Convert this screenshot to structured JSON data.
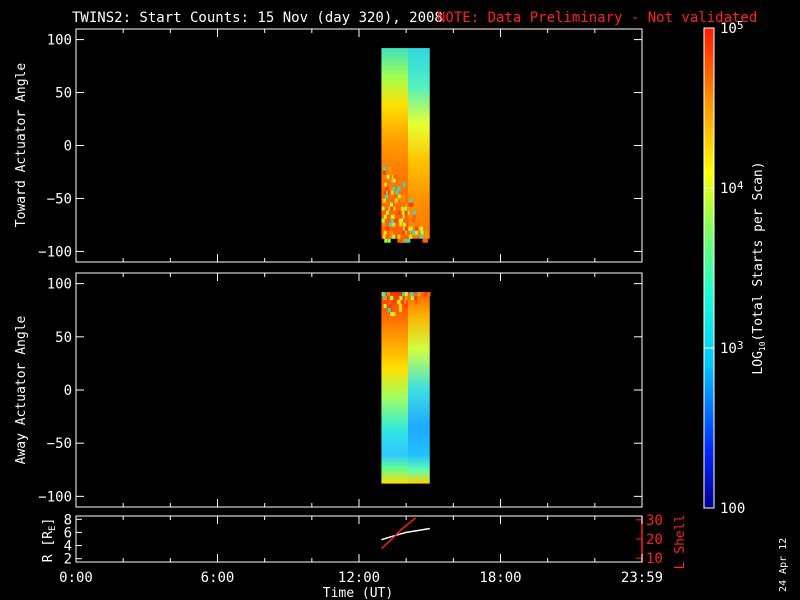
{
  "header": {
    "title": "TWINS2: Start Counts: 15 Nov (day 320), 2008",
    "note": "NOTE: Data Preliminary - Not validated",
    "note_color": "#ff2020"
  },
  "footer": {
    "date_stamp": "24 Apr 12"
  },
  "colors": {
    "background": "#000000",
    "axes": "#ffffff",
    "l_shell": "#ff2020",
    "r_trace": "#ffffff"
  },
  "chart_data": [
    {
      "type": "heatmap",
      "title": "",
      "xlabel": "",
      "ylabel": "Toward Actuator Angle",
      "xlim": [
        0,
        24
      ],
      "ylim": [
        -110,
        110
      ],
      "yticks": [
        -100,
        -50,
        0,
        50,
        100
      ],
      "data_time_range_ut_hours": [
        12.95,
        15.0
      ],
      "data_angle_range": [
        -88,
        92
      ],
      "log_scale": true,
      "description": "Counts increase from ~2e3 (top right, cyan) to ~1e5 (bottom, orange/red) with noisy mixed values below -20 deg after 12:50"
    },
    {
      "type": "heatmap",
      "title": "",
      "xlabel": "",
      "ylabel": "Away Actuator Angle",
      "xlim": [
        0,
        24
      ],
      "ylim": [
        -110,
        110
      ],
      "yticks": [
        -100,
        -50,
        0,
        50,
        100
      ],
      "data_time_range_ut_hours": [
        12.95,
        15.0
      ],
      "data_angle_range": [
        -88,
        92
      ],
      "log_scale": true,
      "description": "Highest counts (~1e5) near +70 to +90 deg, decreasing to ~1e3 (cyan/blue) toward -50 deg, noisy band at top"
    },
    {
      "type": "line",
      "title": "",
      "xlabel": "Time (UT)",
      "ylabel": "R [RE]",
      "y2label": "L Shell",
      "xlim": [
        0,
        24
      ],
      "ylim": [
        1.5,
        8.5
      ],
      "y2lim": [
        8,
        32
      ],
      "yticks": [
        2,
        4,
        6,
        8
      ],
      "y2ticks": [
        10,
        20,
        30
      ],
      "xticks": [
        "0:00",
        "6:00",
        "12:00",
        "18:00",
        "23:59"
      ],
      "series": [
        {
          "name": "R",
          "color": "#ffffff",
          "axis": "left",
          "x": [
            12.95,
            13.5,
            14.0,
            14.5,
            15.0
          ],
          "y": [
            4.9,
            5.5,
            6.0,
            6.3,
            6.6
          ]
        },
        {
          "name": "L Shell",
          "color": "#ff2020",
          "axis": "right",
          "x": [
            12.95,
            13.4,
            13.8,
            14.1,
            14.4
          ],
          "y": [
            15,
            20,
            25,
            28,
            31
          ]
        }
      ]
    }
  ],
  "colorbar": {
    "label": "LOG10(Total Starts per Scan)",
    "label_main": "LOG",
    "label_sub": "10",
    "label_rest": "(Total Starts per Scan)",
    "ticks": [
      {
        "text": "10",
        "exp": "5",
        "value": 100000
      },
      {
        "text": "10",
        "exp": "4",
        "value": 10000
      },
      {
        "text": "10",
        "exp": "3",
        "value": 1000
      },
      {
        "text": "100",
        "exp": "",
        "value": 100
      }
    ],
    "range": [
      100,
      100000
    ],
    "scale": "log"
  },
  "panel3": {
    "left_label_main": "R [R",
    "left_label_sub": "E",
    "left_label_end": "]",
    "right_label": "L Shell"
  }
}
